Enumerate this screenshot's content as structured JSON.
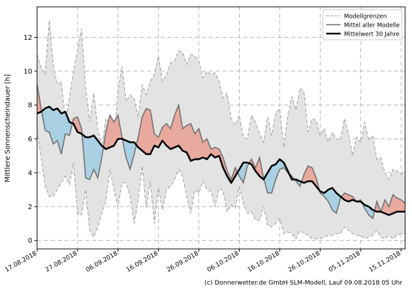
{
  "chart_data": {
    "type": "area",
    "title": "",
    "xlabel": "",
    "ylabel": "Mittlere Sonnenscheindauer [h]",
    "ylim": [
      -0.5,
      13.8
    ],
    "yticks": [
      0,
      2,
      4,
      6,
      8,
      10,
      12
    ],
    "xlim_days": [
      0,
      91
    ],
    "start_date": "17.08.2018",
    "xticks": [
      {
        "label": "17.08.2018",
        "day": 0
      },
      {
        "label": "27.08.2018",
        "day": 10
      },
      {
        "label": "06.09.2018",
        "day": 20
      },
      {
        "label": "16.09.2018",
        "day": 30
      },
      {
        "label": "26.09.2018",
        "day": 40
      },
      {
        "label": "06.10.2018",
        "day": 50
      },
      {
        "label": "16.10.2018",
        "day": 60
      },
      {
        "label": "26.10.2018",
        "day": 70
      },
      {
        "label": "05.11.2018",
        "day": 80
      },
      {
        "label": "15.11.2018",
        "day": 90
      }
    ],
    "grid": true,
    "legend_position": "top-right",
    "colors": {
      "envelope_fill": "#e3e3e3",
      "envelope_line": "#9a9a9a",
      "above_fill": "#e8a99f",
      "below_fill": "#a9d0e3",
      "mean_line": "#707070",
      "climate_line": "#000000"
    },
    "series": [
      {
        "name": "Modellgrenzen",
        "role": "upper",
        "x": [
          0,
          1,
          2,
          3,
          4,
          5,
          6,
          7,
          8,
          9,
          10,
          11,
          12,
          13,
          14,
          15,
          16,
          17,
          18,
          19,
          20,
          21,
          22,
          23,
          24,
          25,
          26,
          27,
          28,
          29,
          30,
          31,
          32,
          33,
          34,
          35,
          36,
          37,
          38,
          39,
          40,
          41,
          42,
          43,
          44,
          45,
          46,
          47,
          48,
          49,
          50,
          51,
          52,
          53,
          54,
          55,
          56,
          57,
          58,
          59,
          60,
          61,
          62,
          63,
          64,
          65,
          66,
          67,
          68,
          69,
          70,
          71,
          72,
          73,
          74,
          75,
          76,
          77,
          78,
          79,
          80,
          81,
          82,
          83,
          84,
          85,
          86,
          87,
          88,
          89,
          90,
          91
        ],
        "values": [
          11.0,
          10.2,
          9.8,
          13.0,
          10.4,
          9.2,
          9.4,
          7.0,
          8.4,
          10.0,
          11.2,
          12.5,
          9.0,
          7.0,
          8.7,
          6.6,
          5.4,
          7.2,
          7.0,
          6.0,
          8.8,
          10.3,
          8.2,
          8.6,
          8.4,
          7.3,
          9.2,
          8.6,
          9.4,
          9.8,
          10.9,
          9.4,
          9.8,
          10.5,
          10.6,
          11.2,
          11.1,
          10.4,
          11.0,
          10.9,
          10.6,
          9.6,
          10.0,
          9.8,
          9.9,
          9.4,
          8.4,
          8.7,
          7.2,
          6.8,
          7.4,
          6.1,
          6.0,
          7.4,
          7.0,
          6.3,
          5.8,
          7.3,
          6.2,
          7.5,
          7.8,
          5.5,
          7.4,
          8.5,
          7.7,
          9.0,
          8.8,
          6.4,
          7.2,
          7.1,
          6.2,
          6.6,
          5.8,
          6.4,
          6.0,
          5.9,
          7.2,
          6.3,
          5.0,
          6.1,
          5.8,
          7.0,
          5.9,
          6.2,
          4.8,
          4.9,
          4.0,
          3.6,
          4.2,
          4.1,
          3.9,
          4.1
        ]
      },
      {
        "name": "",
        "role": "lower",
        "x": [
          0,
          1,
          2,
          3,
          4,
          5,
          6,
          7,
          8,
          9,
          10,
          11,
          12,
          13,
          14,
          15,
          16,
          17,
          18,
          19,
          20,
          21,
          22,
          23,
          24,
          25,
          26,
          27,
          28,
          29,
          30,
          31,
          32,
          33,
          34,
          35,
          36,
          37,
          38,
          39,
          40,
          41,
          42,
          43,
          44,
          45,
          46,
          47,
          48,
          49,
          50,
          51,
          52,
          53,
          54,
          55,
          56,
          57,
          58,
          59,
          60,
          61,
          62,
          63,
          64,
          65,
          66,
          67,
          68,
          69,
          70,
          71,
          72,
          73,
          74,
          75,
          76,
          77,
          78,
          79,
          80,
          81,
          82,
          83,
          84,
          85,
          86,
          87,
          88,
          89,
          90,
          91
        ],
        "values": [
          6.5,
          4.9,
          3.2,
          2.6,
          2.6,
          3.0,
          3.4,
          3.8,
          3.3,
          4.6,
          1.6,
          1.5,
          3.0,
          0.6,
          0.2,
          0.8,
          1.6,
          2.3,
          4.2,
          3.0,
          2.0,
          3.4,
          3.4,
          2.6,
          1.0,
          2.4,
          4.4,
          1.9,
          3.5,
          1.0,
          3.1,
          1.8,
          3.0,
          3.2,
          3.6,
          4.2,
          3.8,
          2.6,
          1.6,
          3.0,
          2.8,
          3.5,
          3.0,
          2.9,
          2.0,
          3.1,
          2.9,
          1.7,
          2.1,
          1.9,
          3.2,
          2.2,
          1.6,
          1.7,
          1.2,
          1.2,
          2.0,
          0.9,
          0.8,
          1.0,
          1.3,
          0.4,
          0.5,
          0.4,
          0.1,
          0.6,
          0.4,
          0.3,
          0.1,
          0.1,
          0.1,
          0.2,
          0.3,
          0.3,
          0.4,
          0.4,
          0.8,
          0.6,
          0.4,
          0.3,
          0.3,
          0.1,
          0.2,
          0.3,
          0.6,
          0.2,
          0.1,
          0.3,
          0.1,
          0.3,
          0.4,
          0.4
        ]
      },
      {
        "name": "Mittel aller Modelle",
        "role": "ensemble_mean",
        "x": [
          0,
          1,
          2,
          3,
          4,
          5,
          6,
          7,
          8,
          9,
          10,
          11,
          12,
          13,
          14,
          15,
          16,
          17,
          18,
          19,
          20,
          21,
          22,
          23,
          24,
          25,
          26,
          27,
          28,
          29,
          30,
          31,
          32,
          33,
          34,
          35,
          36,
          37,
          38,
          39,
          40,
          41,
          42,
          43,
          44,
          45,
          46,
          47,
          48,
          49,
          50,
          51,
          52,
          53,
          54,
          55,
          56,
          57,
          58,
          59,
          60,
          61,
          62,
          63,
          64,
          65,
          66,
          67,
          68,
          69,
          70,
          71,
          72,
          73,
          74,
          75,
          76,
          77,
          78,
          79,
          80,
          81,
          82,
          83,
          84,
          85,
          86,
          87,
          88,
          89,
          90,
          91
        ],
        "values": [
          9.2,
          7.8,
          6.5,
          6.4,
          5.7,
          5.9,
          5.1,
          6.3,
          6.2,
          7.2,
          7.3,
          6.6,
          3.7,
          3.6,
          4.2,
          3.7,
          4.9,
          6.4,
          7.4,
          7.0,
          7.4,
          6.1,
          4.9,
          4.2,
          5.1,
          6.1,
          7.3,
          7.8,
          7.7,
          6.3,
          6.1,
          6.7,
          6.9,
          6.6,
          7.4,
          8.0,
          6.6,
          6.8,
          6.9,
          6.3,
          6.6,
          5.8,
          6.0,
          5.4,
          5.5,
          5.4,
          4.9,
          4.1,
          3.6,
          4.3,
          3.8,
          3.4,
          4.4,
          4.8,
          4.3,
          4.9,
          3.7,
          2.8,
          2.8,
          3.6,
          4.2,
          4.3,
          4.0,
          3.8,
          3.5,
          3.2,
          3.9,
          4.4,
          4.3,
          3.7,
          2.8,
          2.6,
          2.3,
          1.8,
          1.6,
          2.5,
          2.8,
          2.7,
          2.6,
          2.3,
          2.4,
          1.9,
          1.5,
          1.3,
          2.3,
          1.7,
          2.4,
          2.0,
          2.7,
          2.5,
          2.4,
          2.2
        ]
      },
      {
        "name": "Mittelwert 30 Jahre",
        "role": "climatology",
        "x": [
          0,
          1,
          2,
          3,
          4,
          5,
          6,
          7,
          8,
          9,
          10,
          11,
          12,
          13,
          14,
          15,
          16,
          17,
          18,
          19,
          20,
          21,
          22,
          23,
          24,
          25,
          26,
          27,
          28,
          29,
          30,
          31,
          32,
          33,
          34,
          35,
          36,
          37,
          38,
          39,
          40,
          41,
          42,
          43,
          44,
          45,
          46,
          47,
          48,
          49,
          50,
          51,
          52,
          53,
          54,
          55,
          56,
          57,
          58,
          59,
          60,
          61,
          62,
          63,
          64,
          65,
          66,
          67,
          68,
          69,
          70,
          71,
          72,
          73,
          74,
          75,
          76,
          77,
          78,
          79,
          80,
          81,
          82,
          83,
          84,
          85,
          86,
          87,
          88,
          89,
          90,
          91
        ],
        "values": [
          7.5,
          7.6,
          7.8,
          7.9,
          7.7,
          7.8,
          7.5,
          7.6,
          7.0,
          6.9,
          6.4,
          6.3,
          6.1,
          6.1,
          6.2,
          5.9,
          5.6,
          5.4,
          5.5,
          5.6,
          6.0,
          6.0,
          5.9,
          5.8,
          5.8,
          5.5,
          5.3,
          5.1,
          5.1,
          5.6,
          5.5,
          5.9,
          5.6,
          5.4,
          5.5,
          5.6,
          5.3,
          5.2,
          4.7,
          4.8,
          4.8,
          4.9,
          4.8,
          5.1,
          4.9,
          5.0,
          4.3,
          3.8,
          3.4,
          3.8,
          4.2,
          4.6,
          4.6,
          4.5,
          4.1,
          3.8,
          3.6,
          4.0,
          4.4,
          4.5,
          4.8,
          4.6,
          4.1,
          3.6,
          3.6,
          3.5,
          3.4,
          3.5,
          3.5,
          3.2,
          2.9,
          2.8,
          3.0,
          3.1,
          2.8,
          2.6,
          2.4,
          2.3,
          2.4,
          2.3,
          2.3,
          2.1,
          2.0,
          1.8,
          1.7,
          1.7,
          1.6,
          1.5,
          1.6,
          1.7,
          1.7,
          1.7
        ]
      }
    ]
  },
  "credit": "(c) Donnerwetter.de GmbH SLM-Modell, Lauf 09.08.2018 05 Uhr"
}
